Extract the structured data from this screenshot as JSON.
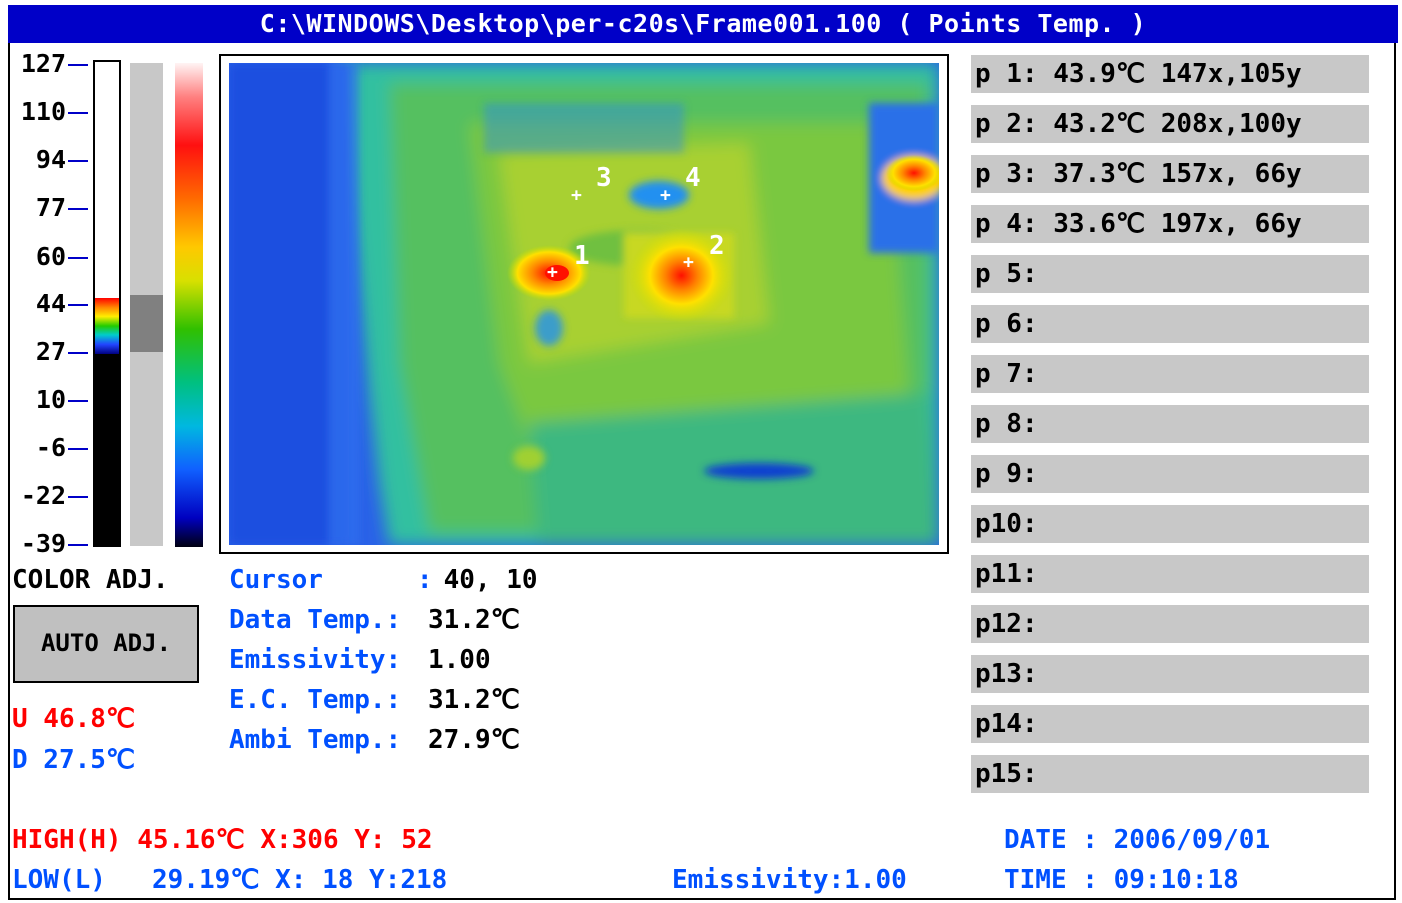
{
  "window": {
    "title": "C:\\WINDOWS\\Desktop\\per-c20s\\Frame001.100 ( Points Temp. )"
  },
  "scale": {
    "ticks": [
      "127",
      "110",
      "94",
      "77",
      "60",
      "44",
      "27",
      "10",
      "-6",
      "-22",
      "-39"
    ]
  },
  "color_adj": {
    "label": "COLOR ADJ.",
    "auto_button": "AUTO ADJ."
  },
  "range": {
    "upper": "U 46.8℃",
    "lower": "D 27.5℃",
    "upper_color": "#ff0000",
    "lower_color": "#0050ff"
  },
  "markers": [
    {
      "label": "1"
    },
    {
      "label": "2"
    },
    {
      "label": "3"
    },
    {
      "label": "4"
    }
  ],
  "info": {
    "cursor_label": "Cursor      :",
    "cursor_value": " 40, 10",
    "data_temp_label": "Data Temp.:",
    "data_temp_value": "31.2℃",
    "emissivity_label": "Emissivity:",
    "emissivity_value": "1.00",
    "ec_temp_label": "E.C. Temp.:",
    "ec_temp_value": "31.2℃",
    "ambi_temp_label": "Ambi Temp.:",
    "ambi_temp_value": "27.9℃"
  },
  "points": [
    {
      "label": "p 1:",
      "value": " 43.9℃ 147x,105y"
    },
    {
      "label": "p 2:",
      "value": " 43.2℃ 208x,100y"
    },
    {
      "label": "p 3:",
      "value": " 37.3℃ 157x, 66y"
    },
    {
      "label": "p 4:",
      "value": " 33.6℃ 197x, 66y"
    },
    {
      "label": "p 5:",
      "value": ""
    },
    {
      "label": "p 6:",
      "value": ""
    },
    {
      "label": "p 7:",
      "value": ""
    },
    {
      "label": "p 8:",
      "value": ""
    },
    {
      "label": "p 9:",
      "value": ""
    },
    {
      "label": "p10:",
      "value": ""
    },
    {
      "label": "p11:",
      "value": ""
    },
    {
      "label": "p12:",
      "value": ""
    },
    {
      "label": "p13:",
      "value": ""
    },
    {
      "label": "p14:",
      "value": ""
    },
    {
      "label": "p15:",
      "value": ""
    }
  ],
  "footer": {
    "high": "HIGH(H) 45.16℃ X:306 Y: 52",
    "low_label": "LOW(L)",
    "low_value": "29.19℃ X: 18 Y:218",
    "emissivity": "Emissivity:1.00",
    "date": "DATE : 2006/09/01",
    "time": "TIME : 09:10:18"
  },
  "colors": {
    "title_bg": "#0000c8",
    "label_blue": "#0050ff",
    "alert_red": "#ff0000",
    "panel_gray": "#c8c8c8"
  }
}
